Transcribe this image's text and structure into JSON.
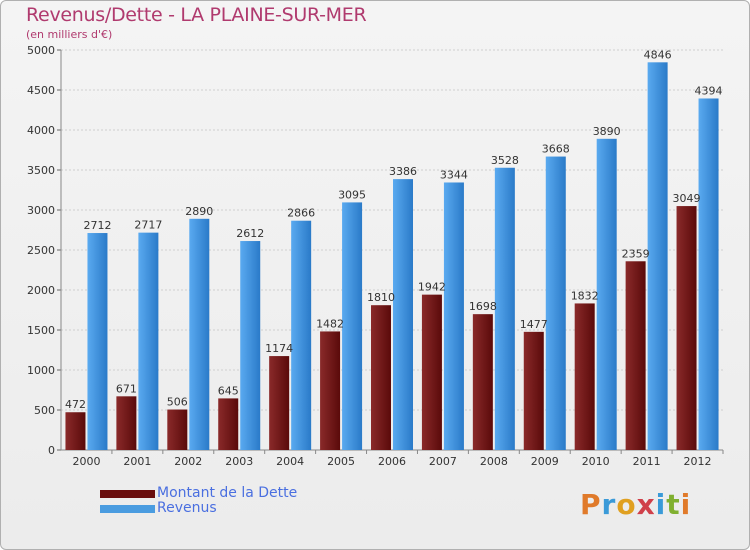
{
  "title": "Revenus/Dette - LA PLAINE-SUR-MER",
  "subtitle": "(en milliers d'€)",
  "legend": [
    {
      "label": "Montant de la Dette",
      "color": "#7a1a1a"
    },
    {
      "label": "Revenus",
      "color": "#4a9ce0"
    }
  ],
  "logo": {
    "text": "Proxiti"
  },
  "colors": {
    "debt_top": "#8a2a2a",
    "debt_bottom": "#5a0a0a",
    "rev_top": "#5aaaf0",
    "rev_bottom": "#2a7ac8"
  },
  "chart_data": {
    "type": "bar",
    "title": "Revenus/Dette - LA PLAINE-SUR-MER",
    "ylabel": "(en milliers d'€)",
    "xlabel": "",
    "ylim": [
      0,
      5000
    ],
    "yticks": [
      0,
      500,
      1000,
      1500,
      2000,
      2500,
      3000,
      3500,
      4000,
      4500,
      5000
    ],
    "categories": [
      "2000",
      "2001",
      "2002",
      "2003",
      "2004",
      "2005",
      "2006",
      "2007",
      "2008",
      "2009",
      "2010",
      "2011",
      "2012"
    ],
    "series": [
      {
        "name": "Montant de la Dette",
        "values": [
          472,
          671,
          506,
          645,
          1174,
          1482,
          1810,
          1942,
          1698,
          1477,
          1832,
          2359,
          3049
        ]
      },
      {
        "name": "Revenus",
        "values": [
          2712,
          2717,
          2890,
          2612,
          2866,
          3095,
          3386,
          3344,
          3528,
          3668,
          3890,
          4846,
          4394
        ]
      }
    ],
    "grid": true,
    "legend_position": "bottom-left"
  }
}
